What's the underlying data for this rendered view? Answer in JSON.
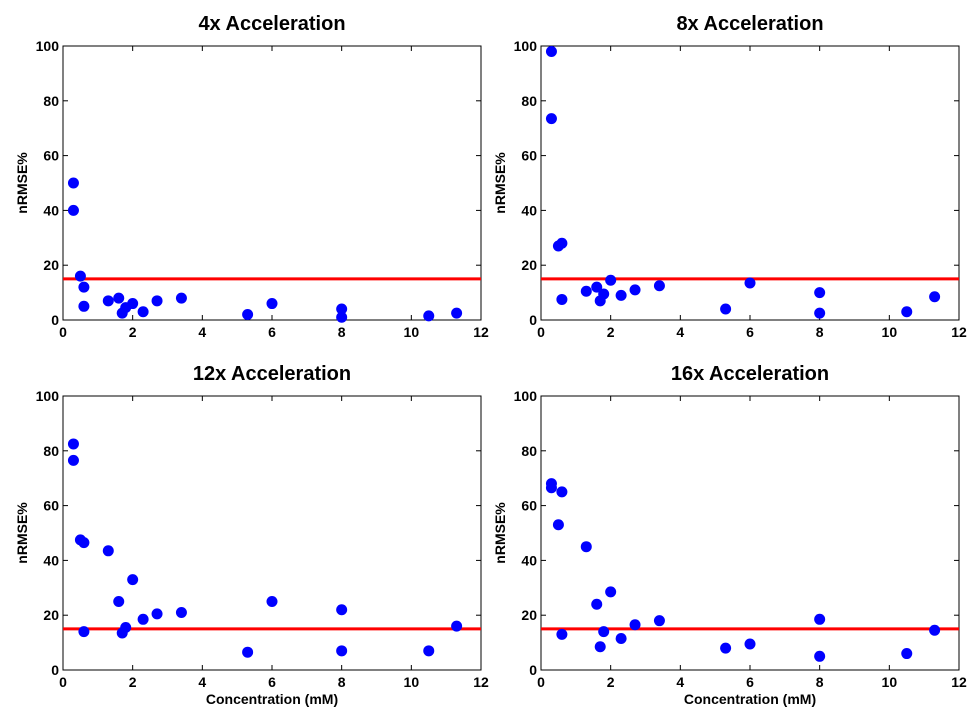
{
  "chart_data": [
    {
      "type": "scatter",
      "title": "4x Acceleration",
      "xlabel": "",
      "ylabel": "nRMSE%",
      "xlim": [
        0,
        12
      ],
      "ylim": [
        0,
        100
      ],
      "xticks": [
        "0",
        "2",
        "4",
        "6",
        "8",
        "10",
        "12"
      ],
      "yticks": [
        "0",
        "20",
        "40",
        "60",
        "80",
        "100"
      ],
      "threshold": 15,
      "grid": false,
      "points": [
        {
          "x": 0.3,
          "y": 50
        },
        {
          "x": 0.3,
          "y": 40
        },
        {
          "x": 0.5,
          "y": 16
        },
        {
          "x": 0.6,
          "y": 12
        },
        {
          "x": 0.6,
          "y": 5
        },
        {
          "x": 1.3,
          "y": 7
        },
        {
          "x": 1.6,
          "y": 8
        },
        {
          "x": 1.7,
          "y": 2.5
        },
        {
          "x": 1.8,
          "y": 4.5
        },
        {
          "x": 2.0,
          "y": 6
        },
        {
          "x": 2.3,
          "y": 3
        },
        {
          "x": 2.7,
          "y": 7
        },
        {
          "x": 3.4,
          "y": 8
        },
        {
          "x": 5.3,
          "y": 2
        },
        {
          "x": 6.0,
          "y": 6
        },
        {
          "x": 8.0,
          "y": 4
        },
        {
          "x": 8.0,
          "y": 1
        },
        {
          "x": 10.5,
          "y": 1.5
        },
        {
          "x": 11.3,
          "y": 2.5
        }
      ]
    },
    {
      "type": "scatter",
      "title": "8x Acceleration",
      "xlabel": "",
      "ylabel": "nRMSE%",
      "xlim": [
        0,
        12
      ],
      "ylim": [
        0,
        100
      ],
      "xticks": [
        "0",
        "2",
        "4",
        "6",
        "8",
        "10",
        "12"
      ],
      "yticks": [
        "0",
        "20",
        "40",
        "60",
        "80",
        "100"
      ],
      "threshold": 15,
      "grid": false,
      "points": [
        {
          "x": 0.3,
          "y": 98
        },
        {
          "x": 0.3,
          "y": 73.5
        },
        {
          "x": 0.5,
          "y": 27
        },
        {
          "x": 0.6,
          "y": 28
        },
        {
          "x": 0.6,
          "y": 7.5
        },
        {
          "x": 1.3,
          "y": 10.5
        },
        {
          "x": 1.6,
          "y": 12
        },
        {
          "x": 1.7,
          "y": 7
        },
        {
          "x": 1.8,
          "y": 9.5
        },
        {
          "x": 2.0,
          "y": 14.5
        },
        {
          "x": 2.3,
          "y": 9
        },
        {
          "x": 2.7,
          "y": 11
        },
        {
          "x": 3.4,
          "y": 12.5
        },
        {
          "x": 5.3,
          "y": 4
        },
        {
          "x": 6.0,
          "y": 13.5
        },
        {
          "x": 8.0,
          "y": 10
        },
        {
          "x": 8.0,
          "y": 2.5
        },
        {
          "x": 10.5,
          "y": 3
        },
        {
          "x": 11.3,
          "y": 8.5
        }
      ]
    },
    {
      "type": "scatter",
      "title": "12x Acceleration",
      "xlabel": "Concentration (mM)",
      "ylabel": "nRMSE%",
      "xlim": [
        0,
        12
      ],
      "ylim": [
        0,
        100
      ],
      "xticks": [
        "0",
        "2",
        "4",
        "6",
        "8",
        "10",
        "12"
      ],
      "yticks": [
        "0",
        "20",
        "40",
        "60",
        "80",
        "100"
      ],
      "threshold": 15,
      "grid": false,
      "points": [
        {
          "x": 0.3,
          "y": 82.5
        },
        {
          "x": 0.3,
          "y": 76.5
        },
        {
          "x": 0.5,
          "y": 47.5
        },
        {
          "x": 0.6,
          "y": 46.5
        },
        {
          "x": 0.6,
          "y": 14
        },
        {
          "x": 1.3,
          "y": 43.5
        },
        {
          "x": 1.6,
          "y": 25
        },
        {
          "x": 1.7,
          "y": 13.5
        },
        {
          "x": 1.8,
          "y": 15.5
        },
        {
          "x": 2.0,
          "y": 33
        },
        {
          "x": 2.3,
          "y": 18.5
        },
        {
          "x": 2.7,
          "y": 20.5
        },
        {
          "x": 3.4,
          "y": 21
        },
        {
          "x": 5.3,
          "y": 6.5
        },
        {
          "x": 6.0,
          "y": 25
        },
        {
          "x": 8.0,
          "y": 22
        },
        {
          "x": 8.0,
          "y": 7
        },
        {
          "x": 10.5,
          "y": 7
        },
        {
          "x": 11.3,
          "y": 16
        }
      ]
    },
    {
      "type": "scatter",
      "title": "16x Acceleration",
      "xlabel": "Concentration (mM)",
      "ylabel": "nRMSE%",
      "xlim": [
        0,
        12
      ],
      "ylim": [
        0,
        100
      ],
      "xticks": [
        "0",
        "2",
        "4",
        "6",
        "8",
        "10",
        "12"
      ],
      "yticks": [
        "0",
        "20",
        "40",
        "60",
        "80",
        "100"
      ],
      "threshold": 15,
      "grid": false,
      "points": [
        {
          "x": 0.3,
          "y": 68
        },
        {
          "x": 0.3,
          "y": 66.5
        },
        {
          "x": 0.5,
          "y": 53
        },
        {
          "x": 0.6,
          "y": 65
        },
        {
          "x": 0.6,
          "y": 13
        },
        {
          "x": 1.3,
          "y": 45
        },
        {
          "x": 1.6,
          "y": 24
        },
        {
          "x": 1.7,
          "y": 8.5
        },
        {
          "x": 1.8,
          "y": 14
        },
        {
          "x": 2.0,
          "y": 28.5
        },
        {
          "x": 2.3,
          "y": 11.5
        },
        {
          "x": 2.7,
          "y": 16.5
        },
        {
          "x": 3.4,
          "y": 18
        },
        {
          "x": 5.3,
          "y": 8
        },
        {
          "x": 6.0,
          "y": 9.5
        },
        {
          "x": 8.0,
          "y": 18.5
        },
        {
          "x": 8.0,
          "y": 5
        },
        {
          "x": 10.5,
          "y": 6
        },
        {
          "x": 11.3,
          "y": 14.5
        }
      ]
    }
  ],
  "colors": {
    "points": "#0000ff",
    "threshold": "#ff0000",
    "axes": "#000000"
  }
}
